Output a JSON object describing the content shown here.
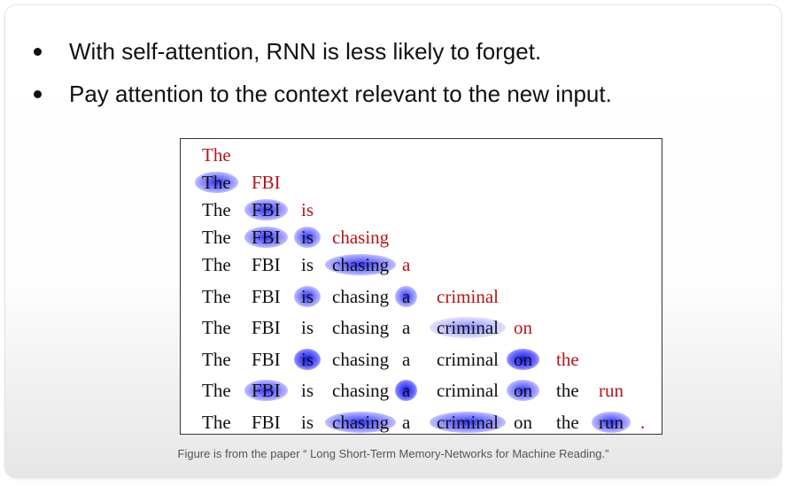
{
  "bullets": [
    "With self-attention, RNN is less likely to forget.",
    "Pay attention to the context relevant to the new input."
  ],
  "figure": {
    "rows": [
      [
        {
          "text": "The",
          "new": true
        }
      ],
      [
        {
          "text": "The",
          "hl": 2
        },
        {
          "text": "FBI",
          "new": true
        }
      ],
      [
        {
          "text": "The"
        },
        {
          "text": "FBI",
          "hl": 2
        },
        {
          "text": "is",
          "new": true
        }
      ],
      [
        {
          "text": "The"
        },
        {
          "text": "FBI",
          "hl": 2
        },
        {
          "text": "is",
          "hl": 2
        },
        {
          "text": "chasing",
          "new": true
        }
      ],
      [
        {
          "text": "The"
        },
        {
          "text": "FBI"
        },
        {
          "text": "is"
        },
        {
          "text": "chasing",
          "hl": 2
        },
        {
          "text": "a",
          "new": true
        }
      ],
      [
        {
          "text": "The"
        },
        {
          "text": "FBI"
        },
        {
          "text": "is",
          "hl": 2
        },
        {
          "text": "chasing"
        },
        {
          "text": "a",
          "hl": 2
        },
        {
          "text": "criminal",
          "new": true
        }
      ],
      [
        {
          "text": "The"
        },
        {
          "text": "FBI"
        },
        {
          "text": "is"
        },
        {
          "text": "chasing"
        },
        {
          "text": "a"
        },
        {
          "text": "criminal",
          "hl": 1
        },
        {
          "text": "on",
          "new": true
        }
      ],
      [
        {
          "text": "The"
        },
        {
          "text": "FBI"
        },
        {
          "text": "is",
          "hl": 3
        },
        {
          "text": "chasing"
        },
        {
          "text": "a"
        },
        {
          "text": "criminal"
        },
        {
          "text": "on",
          "hl": 3
        },
        {
          "text": "the",
          "new": true
        }
      ],
      [
        {
          "text": "The"
        },
        {
          "text": "FBI",
          "hl": 2
        },
        {
          "text": "is"
        },
        {
          "text": "chasing"
        },
        {
          "text": "a",
          "hl": 3
        },
        {
          "text": "criminal"
        },
        {
          "text": "on",
          "hl": 2
        },
        {
          "text": "the"
        },
        {
          "text": "run",
          "new": true
        }
      ],
      [
        {
          "text": "The"
        },
        {
          "text": "FBI"
        },
        {
          "text": "is"
        },
        {
          "text": "chasing",
          "hl": 2
        },
        {
          "text": "a"
        },
        {
          "text": "criminal",
          "hl": 2
        },
        {
          "text": "on"
        },
        {
          "text": "the"
        },
        {
          "text": "run",
          "hl": 2
        },
        {
          "text": ".",
          "new": true
        }
      ]
    ]
  },
  "caption": "Figure is from the paper “ Long Short-Term Memory-Networks for Machine Reading.”"
}
